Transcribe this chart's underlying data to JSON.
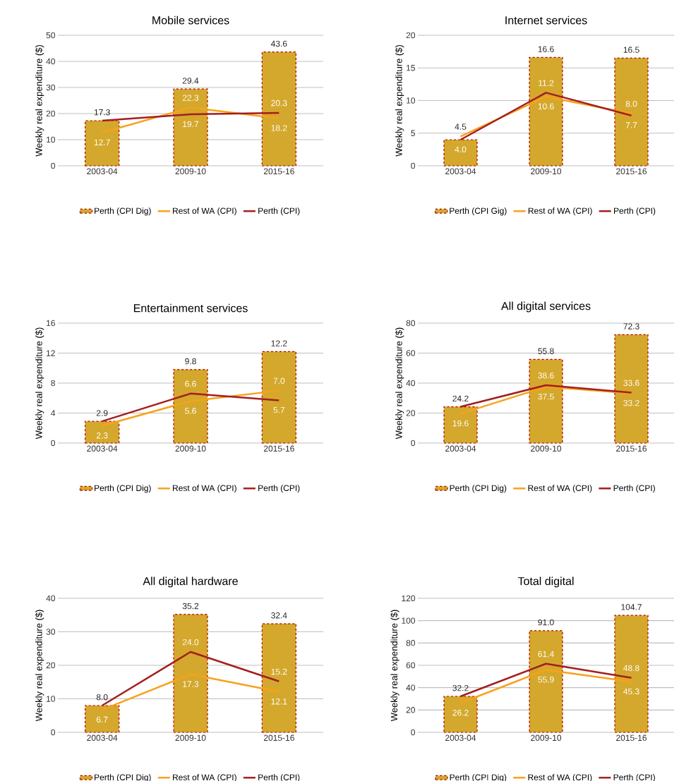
{
  "chart_data": [
    {
      "type": "bar",
      "title": "Mobile services",
      "ylabel": "Weekly real expenditure ($)",
      "categories": [
        "2003-04",
        "2009-10",
        "2015-16"
      ],
      "ylim": [
        0,
        50
      ],
      "yticks": [
        0,
        10,
        20,
        30,
        40,
        50
      ],
      "grid": "y",
      "legend": "bottom",
      "series": [
        {
          "name": "Perth (CPI Dig)",
          "color": "#d4a82c",
          "values": [
            17.3,
            29.4,
            43.6
          ],
          "value_labels": [
            "17.3",
            "29.4",
            "43.6"
          ]
        },
        {
          "name": "Rest of WA (CPI)",
          "type": "line",
          "color": "#f7a21b",
          "values": [
            12.7,
            22.3,
            18.2
          ],
          "value_labels": [
            "12.7",
            "22.3",
            "18.2"
          ]
        },
        {
          "name": "Perth (CPI)",
          "type": "line",
          "color": "#a31f1f",
          "values": [
            17.3,
            19.7,
            20.3
          ],
          "value_labels": [
            null,
            "19.7",
            "20.3"
          ]
        }
      ]
    },
    {
      "type": "bar",
      "title": "Internet services",
      "ylabel": "Weekly real expenditure ($)",
      "categories": [
        "2003-04",
        "2009-10",
        "2015-16"
      ],
      "ylim": [
        0,
        20
      ],
      "yticks": [
        0,
        5,
        10,
        15,
        20
      ],
      "grid": "y",
      "legend": "bottom",
      "series": [
        {
          "name": "Perth (CPI Gig)",
          "color": "#d4a82c",
          "values": [
            4.0,
            16.6,
            16.5
          ],
          "value_labels": [
            null,
            "16.6",
            "16.5"
          ]
        },
        {
          "name": "Rest of WA (CPI)",
          "type": "line",
          "color": "#f7a21b",
          "values": [
            4.5,
            10.6,
            8.0
          ],
          "value_labels": [
            "4.5",
            "10.6",
            "8.0"
          ]
        },
        {
          "name": "Perth (CPI)",
          "type": "line",
          "color": "#a31f1f",
          "values": [
            4.0,
            11.2,
            7.7
          ],
          "value_labels": [
            "4.0",
            "11.2",
            "7.7"
          ]
        }
      ]
    },
    {
      "type": "bar",
      "title": "Entertainment services",
      "ylabel": "Weekly real expenditure ($)",
      "categories": [
        "2003-04",
        "2009-10",
        "2015-16"
      ],
      "ylim": [
        0,
        16
      ],
      "yticks": [
        0,
        4,
        8,
        12,
        16
      ],
      "grid": "y",
      "legend": "bottom",
      "series": [
        {
          "name": "Perth (CPI Dig)",
          "color": "#d4a82c",
          "values": [
            2.9,
            9.8,
            12.2
          ],
          "value_labels": [
            "2.9",
            "9.8",
            "12.2"
          ]
        },
        {
          "name": "Rest of WA (CPI)",
          "type": "line",
          "color": "#f7a21b",
          "values": [
            2.3,
            5.6,
            7.0
          ],
          "value_labels": [
            "2.3",
            "5.6",
            "7.0"
          ]
        },
        {
          "name": "Perth (CPI)",
          "type": "line",
          "color": "#a31f1f",
          "values": [
            2.9,
            6.6,
            5.7
          ],
          "value_labels": [
            null,
            "6.6",
            "5.7"
          ]
        }
      ]
    },
    {
      "type": "bar",
      "title": "All digital services",
      "ylabel": "Weekly real expenditure ($)",
      "categories": [
        "2003-04",
        "2009-10",
        "2015-16"
      ],
      "ylim": [
        0,
        80
      ],
      "yticks": [
        0,
        20,
        40,
        60,
        80
      ],
      "grid": "y",
      "legend": "bottom",
      "series": [
        {
          "name": "Perth (CPI Dig)",
          "color": "#d4a82c",
          "values": [
            24.2,
            55.8,
            72.3
          ],
          "value_labels": [
            "24.2",
            "55.8",
            "72.3"
          ]
        },
        {
          "name": "Rest of WA (CPI)",
          "type": "line",
          "color": "#f7a21b",
          "values": [
            19.6,
            37.5,
            33.2
          ],
          "value_labels": [
            "19.6",
            "37.5",
            "33.2"
          ]
        },
        {
          "name": "Perth (CPI)",
          "type": "line",
          "color": "#a31f1f",
          "values": [
            24.2,
            38.6,
            33.6
          ],
          "value_labels": [
            null,
            "38.6",
            "33.6"
          ]
        }
      ]
    },
    {
      "type": "bar",
      "title": "All digital hardware",
      "ylabel": "Weekly real expenditure ($)",
      "categories": [
        "2003-04",
        "2009-10",
        "2015-16"
      ],
      "ylim": [
        0,
        40
      ],
      "yticks": [
        0,
        10,
        20,
        30,
        40
      ],
      "grid": "y",
      "legend": "bottom",
      "series": [
        {
          "name": "Perth (CPI Dig)",
          "color": "#d4a82c",
          "values": [
            8.0,
            35.2,
            32.4
          ],
          "value_labels": [
            "8.0",
            "35.2",
            "32.4"
          ]
        },
        {
          "name": "Rest of WA (CPI)",
          "type": "line",
          "color": "#f7a21b",
          "values": [
            6.7,
            17.3,
            12.1
          ],
          "value_labels": [
            "6.7",
            "17.3",
            "12.1"
          ]
        },
        {
          "name": "Perth (CPI)",
          "type": "line",
          "color": "#a31f1f",
          "values": [
            8.0,
            24.0,
            15.2
          ],
          "value_labels": [
            null,
            "24.0",
            "15.2"
          ]
        }
      ]
    },
    {
      "type": "bar",
      "title": "Total digital",
      "ylabel": "Weekly real expenditure ($)",
      "categories": [
        "2003-04",
        "2009-10",
        "2015-16"
      ],
      "ylim": [
        0,
        120
      ],
      "yticks": [
        0,
        20,
        40,
        60,
        80,
        100,
        120
      ],
      "grid": "y",
      "legend": "bottom",
      "series": [
        {
          "name": "Perth (CPI Dig)",
          "color": "#d4a82c",
          "values": [
            32.2,
            91.0,
            104.7
          ],
          "value_labels": [
            "32.2",
            "91.0",
            "104.7"
          ]
        },
        {
          "name": "Rest of WA (CPI)",
          "type": "line",
          "color": "#f7a21b",
          "values": [
            26.2,
            55.9,
            45.3
          ],
          "value_labels": [
            "26.2",
            "55.9",
            "45.3"
          ]
        },
        {
          "name": "Perth (CPI)",
          "type": "line",
          "color": "#a31f1f",
          "values": [
            32.2,
            61.4,
            48.8
          ],
          "value_labels": [
            null,
            "61.4",
            "48.8"
          ]
        }
      ]
    }
  ]
}
